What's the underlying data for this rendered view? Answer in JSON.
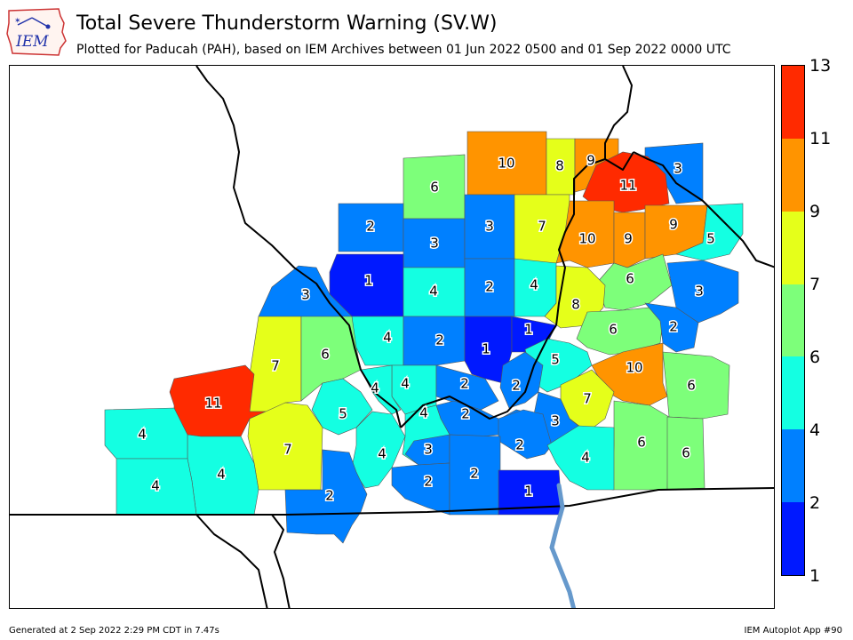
{
  "header": {
    "logo_text": "IEM",
    "title": "Total Severe Thunderstorm Warning (SV.W)",
    "subtitle": "Plotted for Paducah (PAH), based on IEM Archives  between 01 Jun 2022 0500 and 01 Sep 2022 0000 UTC"
  },
  "colorbar": {
    "labels": [
      "13",
      "11",
      "9",
      "7",
      "6",
      "4",
      "2",
      "1"
    ],
    "colors": [
      "#ff2a00",
      "#ff9400",
      "#e5ff1a",
      "#7dff7a",
      "#14ffe2",
      "#0080ff",
      "#0019ff",
      "#0000ff"
    ]
  },
  "map": {
    "counties": [
      {
        "value": "6"
      },
      {
        "value": "10"
      },
      {
        "value": "8"
      },
      {
        "value": "9"
      },
      {
        "value": "3"
      },
      {
        "value": "11"
      },
      {
        "value": "2"
      },
      {
        "value": "3"
      },
      {
        "value": "3"
      },
      {
        "value": "7"
      },
      {
        "value": "10"
      },
      {
        "value": "9"
      },
      {
        "value": "9"
      },
      {
        "value": "5"
      },
      {
        "value": "1"
      },
      {
        "value": "4"
      },
      {
        "value": "2"
      },
      {
        "value": "4"
      },
      {
        "value": "6"
      },
      {
        "value": "3"
      },
      {
        "value": "8"
      },
      {
        "value": "3"
      },
      {
        "value": "4"
      },
      {
        "value": "2"
      },
      {
        "value": "1"
      },
      {
        "value": "1"
      },
      {
        "value": "6"
      },
      {
        "value": "2"
      },
      {
        "value": "7"
      },
      {
        "value": "6"
      },
      {
        "value": "5"
      },
      {
        "value": "10"
      },
      {
        "value": "6"
      },
      {
        "value": "4"
      },
      {
        "value": "2"
      },
      {
        "value": "2"
      },
      {
        "value": "7"
      },
      {
        "value": "11"
      },
      {
        "value": "5"
      },
      {
        "value": "4"
      },
      {
        "value": "2"
      },
      {
        "value": "3"
      },
      {
        "value": "4"
      },
      {
        "value": "7"
      },
      {
        "value": "3"
      },
      {
        "value": "2"
      },
      {
        "value": "4"
      },
      {
        "value": "2"
      },
      {
        "value": "2"
      },
      {
        "value": "6"
      },
      {
        "value": "6"
      },
      {
        "value": "4"
      },
      {
        "value": "4"
      },
      {
        "value": "1"
      },
      {
        "value": "2"
      },
      {
        "value": "4"
      },
      {
        "value": "4"
      }
    ]
  },
  "footer": {
    "left": "Generated at 2 Sep 2022 2:29 PM CDT in 7.47s",
    "right": "IEM Autoplot App #90"
  }
}
